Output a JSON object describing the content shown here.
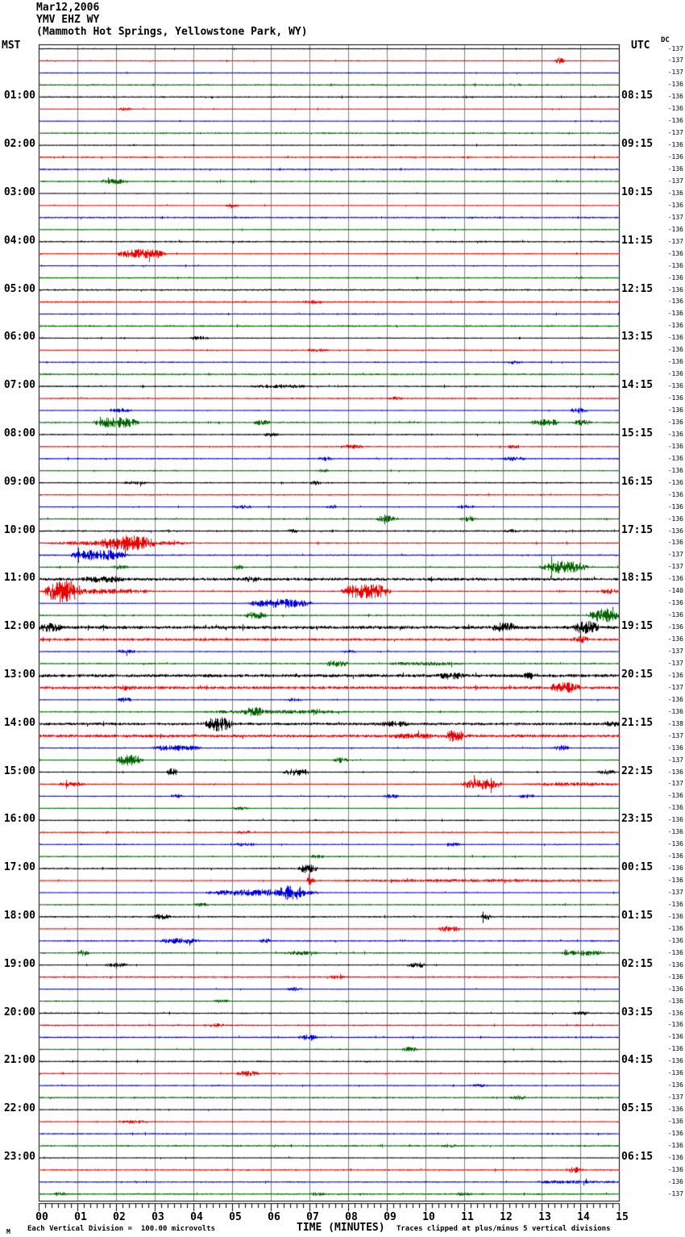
{
  "header": {
    "date": "Mar12,2006",
    "station": "YMV EHZ WY",
    "location": "(Mammoth Hot Springs, Yellowstone Park, WY)",
    "left_tz": "MST",
    "right_tz": "UTC",
    "dc_label": "DC"
  },
  "footer": {
    "scale_prefix": "M",
    "scale_note": "Each Vertical Division =  100.00 microvolts",
    "axis_title": "TIME (MINUTES)",
    "clip_note": "Traces clipped at plus/minus 5 vertical divisions"
  },
  "chart_data": {
    "type": "helicorder-seismogram",
    "title": "YMV EHZ WY (Mammoth Hot Springs, Yellowstone Park, WY) Mar12,2006",
    "xlabel": "TIME (MINUTES)",
    "minutes_per_line": 15,
    "rows": 96,
    "minor_ticks_per_minute": 6,
    "microvolts_per_division": 100.0,
    "clip_divisions": 5,
    "x_tick_labels": [
      "00",
      "01",
      "02",
      "03",
      "04",
      "05",
      "06",
      "07",
      "08",
      "09",
      "10",
      "11",
      "12",
      "13",
      "14",
      "15"
    ],
    "first_label_row": 4,
    "label_every_n_rows": 4,
    "left_time_labels": [
      "01:00",
      "02:00",
      "03:00",
      "04:00",
      "05:00",
      "06:00",
      "07:00",
      "08:00",
      "09:00",
      "10:00",
      "11:00",
      "12:00",
      "13:00",
      "14:00",
      "15:00",
      "16:00",
      "17:00",
      "18:00",
      "19:00",
      "20:00",
      "21:00",
      "22:00",
      "23:00"
    ],
    "right_time_labels": [
      "08:15",
      "09:15",
      "10:15",
      "11:15",
      "12:15",
      "13:15",
      "14:15",
      "15:15",
      "16:15",
      "17:15",
      "18:15",
      "19:15",
      "20:15",
      "21:15",
      "22:15",
      "23:15",
      "00:15",
      "01:15",
      "02:15",
      "03:15",
      "04:15",
      "05:15",
      "06:15"
    ],
    "dc_values": [
      -137,
      -137,
      -137,
      -136,
      -136,
      -136,
      -136,
      -137,
      -136,
      -136,
      -136,
      -137,
      -136,
      -136,
      -137,
      -136,
      -137,
      -136,
      -136,
      -136,
      -136,
      -136,
      -136,
      -136,
      -136,
      -136,
      -136,
      -136,
      -136,
      -136,
      -136,
      -136,
      -136,
      -136,
      -136,
      -136,
      -136,
      -136,
      -136,
      -136,
      -136,
      -136,
      -137,
      -137,
      -136,
      -140,
      -136,
      -136,
      -136,
      -136,
      -137,
      -137,
      -136,
      -137,
      -136,
      -136,
      -138,
      -137,
      -136,
      -137,
      -136,
      -137,
      -136,
      -136,
      -136,
      -136,
      -136,
      -136,
      -136,
      -136,
      -137,
      -136,
      -136,
      -136,
      -136,
      -136,
      -136,
      -136,
      -136,
      -136,
      -136,
      -136,
      -136,
      -136,
      -136,
      -136,
      -136,
      -137,
      -136,
      -136,
      -136,
      -136,
      -136,
      -136,
      -136,
      -137
    ],
    "colors": {
      "trace_cycle": [
        "#000000",
        "#ee0000",
        "#0000dd",
        "#006600"
      ],
      "grid": "#808080",
      "border": "#000000",
      "background": "#ffffff"
    },
    "noise_base": 0.9,
    "events": [
      [
        1,
        13.3,
        13.6,
        4
      ],
      [
        5,
        2.0,
        2.4,
        1.5
      ],
      [
        11,
        1.6,
        2.3,
        2.5
      ],
      [
        13,
        4.8,
        5.2,
        1.5
      ],
      [
        17,
        2.0,
        3.3,
        5
      ],
      [
        21,
        6.8,
        7.4,
        1.5
      ],
      [
        24,
        3.9,
        4.4,
        2
      ],
      [
        25,
        6.9,
        7.5,
        1.5
      ],
      [
        26,
        12.1,
        12.5,
        1.5
      ],
      [
        28,
        5.4,
        7.0,
        1.5
      ],
      [
        29,
        9.0,
        9.4,
        1.5
      ],
      [
        30,
        1.8,
        2.4,
        2
      ],
      [
        30,
        13.7,
        14.2,
        3
      ],
      [
        31,
        1.4,
        2.6,
        6
      ],
      [
        31,
        5.5,
        6.0,
        2.5
      ],
      [
        31,
        12.7,
        13.5,
        3.5
      ],
      [
        31,
        13.8,
        14.3,
        2.5
      ],
      [
        32,
        5.8,
        6.2,
        1.5
      ],
      [
        33,
        7.8,
        8.4,
        2
      ],
      [
        33,
        12.1,
        12.4,
        1.5
      ],
      [
        34,
        7.2,
        7.6,
        2
      ],
      [
        34,
        12.0,
        12.6,
        2
      ],
      [
        35,
        7.2,
        7.5,
        1.5
      ],
      [
        36,
        2.2,
        2.8,
        1.5
      ],
      [
        36,
        7.0,
        7.3,
        2
      ],
      [
        38,
        5.0,
        5.5,
        2
      ],
      [
        38,
        7.4,
        7.7,
        1.5
      ],
      [
        38,
        10.8,
        11.3,
        2
      ],
      [
        39,
        8.7,
        9.3,
        3.5
      ],
      [
        39,
        10.9,
        11.3,
        2.5
      ],
      [
        40,
        6.4,
        6.7,
        1.5
      ],
      [
        40,
        12.0,
        12.4,
        1.5
      ],
      [
        41,
        0.2,
        4.0,
        2
      ],
      [
        41,
        1.6,
        3.0,
        7
      ],
      [
        42,
        0.8,
        2.3,
        6
      ],
      [
        43,
        1.9,
        2.3,
        2
      ],
      [
        43,
        5.0,
        5.3,
        2
      ],
      [
        43,
        12.9,
        14.2,
        7
      ],
      [
        44,
        0,
        15,
        1.2
      ],
      [
        44,
        1.1,
        2.2,
        2.5
      ],
      [
        44,
        5.3,
        5.7,
        2
      ],
      [
        45,
        0.15,
        1.1,
        12
      ],
      [
        45,
        0,
        3.0,
        2.5
      ],
      [
        45,
        7.8,
        9.1,
        9
      ],
      [
        45,
        14.5,
        15,
        2.5
      ],
      [
        46,
        5.4,
        7.1,
        5
      ],
      [
        47,
        5.3,
        5.9,
        3.5
      ],
      [
        47,
        14.2,
        15,
        8
      ],
      [
        48,
        0,
        15,
        1.6
      ],
      [
        48,
        0,
        0.6,
        4
      ],
      [
        48,
        11.7,
        12.4,
        4.5
      ],
      [
        48,
        13.8,
        14.5,
        6
      ],
      [
        49,
        0,
        15,
        1.1
      ],
      [
        49,
        13.8,
        14.2,
        3.5
      ],
      [
        50,
        2.0,
        2.5,
        2
      ],
      [
        50,
        7.8,
        8.2,
        1.5
      ],
      [
        51,
        7.4,
        8.0,
        3
      ],
      [
        51,
        9.0,
        11.0,
        1.5
      ],
      [
        52,
        0,
        15,
        1.2
      ],
      [
        52,
        10.3,
        11.0,
        3
      ],
      [
        52,
        12.5,
        12.9,
        2.5
      ],
      [
        53,
        0,
        15,
        1.2
      ],
      [
        53,
        2.1,
        2.5,
        2
      ],
      [
        53,
        13.2,
        14.0,
        5
      ],
      [
        54,
        2.0,
        2.4,
        2.5
      ],
      [
        54,
        6.4,
        6.8,
        1.5
      ],
      [
        55,
        4.2,
        8.0,
        1.6
      ],
      [
        55,
        5.3,
        5.8,
        3.5
      ],
      [
        55,
        7.0,
        7.3,
        2.5
      ],
      [
        56,
        0,
        15,
        1.1
      ],
      [
        56,
        4.3,
        5.0,
        8
      ],
      [
        56,
        8.8,
        9.6,
        2
      ],
      [
        56,
        14.6,
        15,
        2
      ],
      [
        57,
        0,
        15,
        1.2
      ],
      [
        57,
        9.0,
        10.4,
        1.8
      ],
      [
        57,
        10.5,
        11.0,
        6
      ],
      [
        58,
        2.9,
        4.2,
        3
      ],
      [
        58,
        13.3,
        13.7,
        3
      ],
      [
        59,
        2.0,
        2.7,
        7
      ],
      [
        59,
        7.6,
        8.0,
        3
      ],
      [
        60,
        3.3,
        3.6,
        4.5
      ],
      [
        60,
        6.3,
        7.0,
        4
      ],
      [
        60,
        14.4,
        14.9,
        2.5
      ],
      [
        61,
        0.5,
        1.2,
        2
      ],
      [
        61,
        10.9,
        12.0,
        6
      ],
      [
        61,
        12.5,
        15,
        1.6
      ],
      [
        62,
        3.4,
        3.7,
        2
      ],
      [
        62,
        8.9,
        9.3,
        2
      ],
      [
        62,
        12.4,
        12.8,
        2
      ],
      [
        63,
        5.0,
        5.4,
        1.5
      ],
      [
        65,
        5.1,
        5.5,
        1.5
      ],
      [
        66,
        5.0,
        5.6,
        2
      ],
      [
        66,
        10.5,
        10.9,
        1.5
      ],
      [
        67,
        7.0,
        7.4,
        1.5
      ],
      [
        68,
        6.7,
        7.2,
        5
      ],
      [
        69,
        6.9,
        7.15,
        4.5
      ],
      [
        69,
        7.2,
        15,
        1.2
      ],
      [
        70,
        4.3,
        7.3,
        3.5
      ],
      [
        70,
        6.2,
        6.9,
        6
      ],
      [
        71,
        4.0,
        4.4,
        1.5
      ],
      [
        72,
        2.9,
        3.4,
        2.5
      ],
      [
        72,
        11.4,
        11.7,
        3
      ],
      [
        73,
        10.3,
        10.9,
        3
      ],
      [
        74,
        3.1,
        4.2,
        2.5
      ],
      [
        74,
        5.7,
        6.0,
        2
      ],
      [
        75,
        1.0,
        1.3,
        3
      ],
      [
        75,
        6.3,
        7.2,
        1.8
      ],
      [
        75,
        13.5,
        14.6,
        2.5
      ],
      [
        76,
        1.7,
        2.3,
        2
      ],
      [
        76,
        9.5,
        10.0,
        3
      ],
      [
        77,
        7.5,
        7.9,
        1.5
      ],
      [
        78,
        6.4,
        6.8,
        2
      ],
      [
        79,
        4.5,
        5.0,
        1.5
      ],
      [
        80,
        13.8,
        14.3,
        1.5
      ],
      [
        81,
        4.4,
        4.8,
        1.5
      ],
      [
        82,
        6.7,
        7.2,
        3
      ],
      [
        83,
        9.3,
        9.8,
        2.5
      ],
      [
        85,
        5.1,
        5.7,
        3
      ],
      [
        86,
        11.2,
        11.6,
        1.5
      ],
      [
        87,
        12.2,
        12.6,
        2
      ],
      [
        89,
        2.0,
        3.0,
        1.3
      ],
      [
        91,
        10.4,
        10.8,
        1.5
      ],
      [
        93,
        13.6,
        14.1,
        3
      ],
      [
        94,
        12.8,
        15,
        1.3
      ],
      [
        95,
        0.4,
        0.7,
        2.5
      ],
      [
        95,
        7.0,
        7.4,
        1.5
      ],
      [
        95,
        10.8,
        11.2,
        1.5
      ]
    ]
  }
}
